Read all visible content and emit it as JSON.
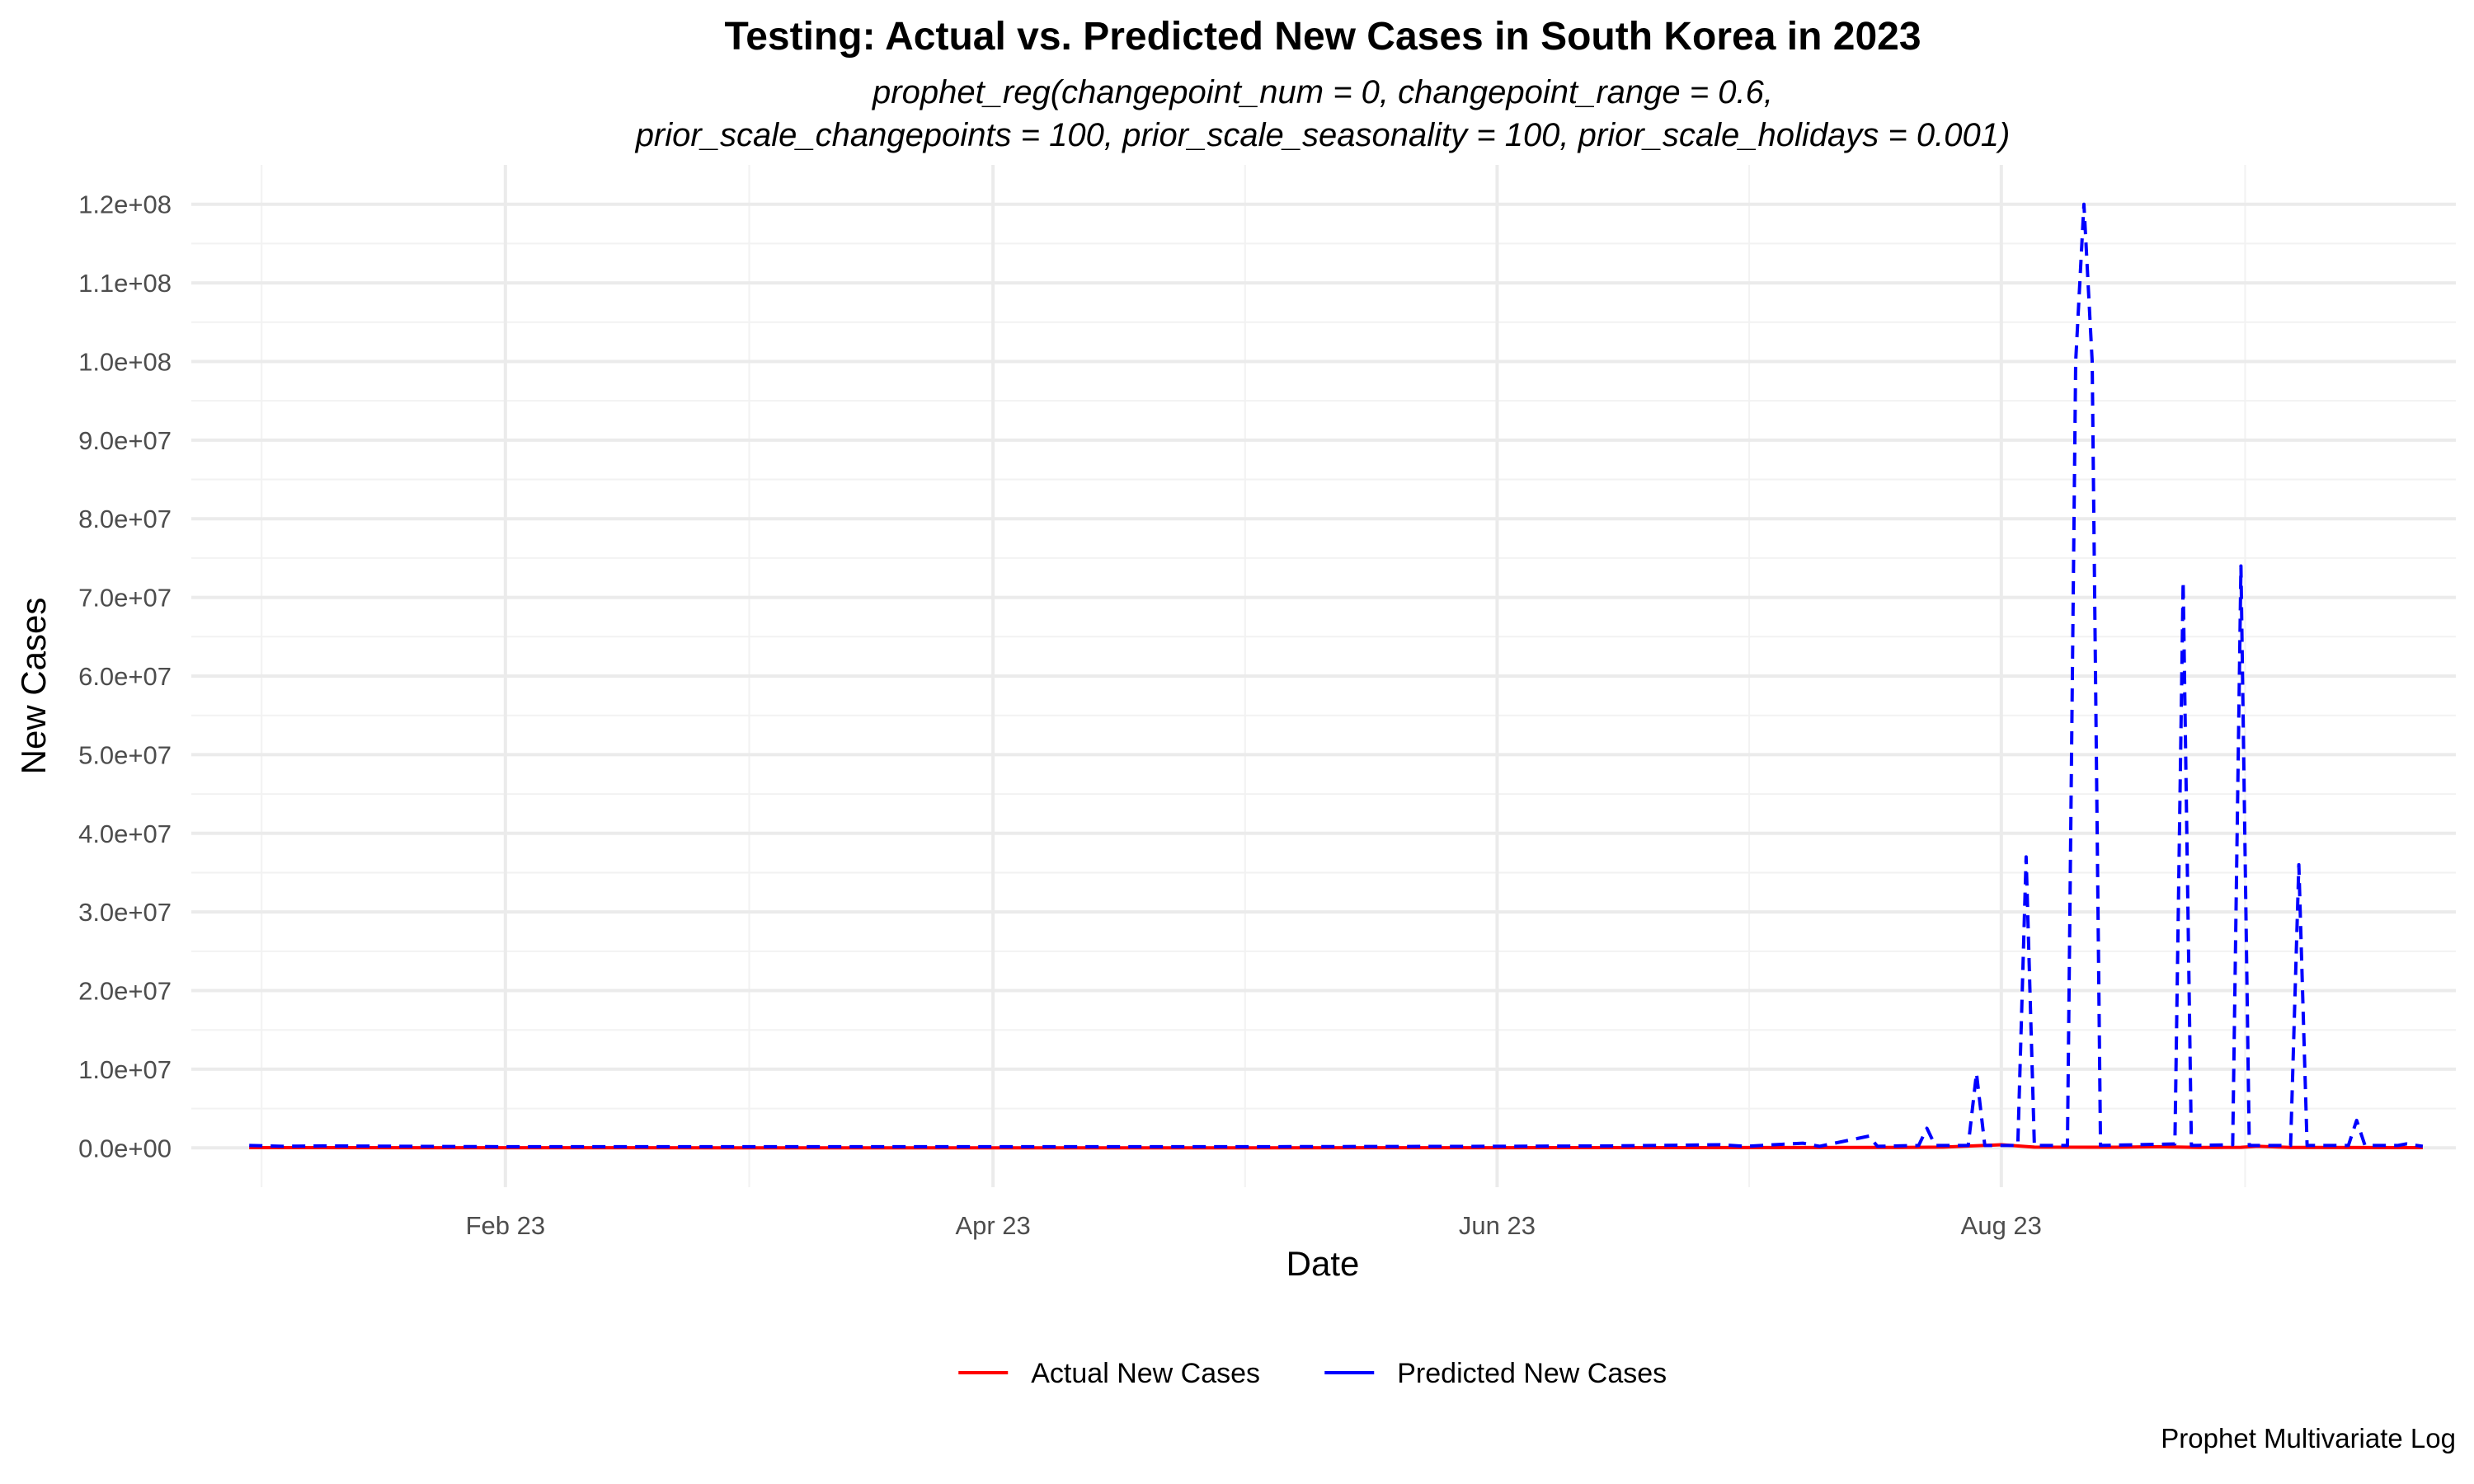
{
  "chart_data": {
    "type": "line",
    "title": "Testing: Actual vs. Predicted New Cases in South Korea in 2023",
    "subtitle_lines": [
      "prophet_reg(changepoint_num = 0, changepoint_range = 0.6,",
      "prior_scale_changepoints = 100, prior_scale_seasonality = 100, prior_scale_holidays = 0.001)"
    ],
    "xlabel": "Date",
    "ylabel": "New Cases",
    "caption": "Prophet Multivariate Log",
    "x_domain": [
      "2022-12-25",
      "2023-09-25"
    ],
    "x_ticks": [
      {
        "date": "2023-02-01",
        "label": "Feb 23"
      },
      {
        "date": "2023-04-01",
        "label": "Apr 23"
      },
      {
        "date": "2023-06-01",
        "label": "Jun 23"
      },
      {
        "date": "2023-08-01",
        "label": "Aug 23"
      }
    ],
    "ylim": [
      -5000000,
      125000000
    ],
    "y_ticks": [
      {
        "value": 0,
        "label": "0.0e+00"
      },
      {
        "value": 10000000,
        "label": "1.0e+07"
      },
      {
        "value": 20000000,
        "label": "2.0e+07"
      },
      {
        "value": 30000000,
        "label": "3.0e+07"
      },
      {
        "value": 40000000,
        "label": "4.0e+07"
      },
      {
        "value": 50000000,
        "label": "5.0e+07"
      },
      {
        "value": 60000000,
        "label": "6.0e+07"
      },
      {
        "value": 70000000,
        "label": "7.0e+07"
      },
      {
        "value": 80000000,
        "label": "8.0e+07"
      },
      {
        "value": 90000000,
        "label": "9.0e+07"
      },
      {
        "value": 100000000,
        "label": "1.0e+08"
      },
      {
        "value": 110000000,
        "label": "1.1e+08"
      },
      {
        "value": 120000000,
        "label": "1.2e+08"
      }
    ],
    "grid": true,
    "legend_position": "bottom",
    "series": [
      {
        "name": "Actual New Cases",
        "color": "#ff0000",
        "line_style": "solid",
        "points": [
          {
            "x": "2023-01-01",
            "y": 30000
          },
          {
            "x": "2023-02-01",
            "y": 20000
          },
          {
            "x": "2023-03-01",
            "y": 12000
          },
          {
            "x": "2023-04-01",
            "y": 10000
          },
          {
            "x": "2023-05-01",
            "y": 15000
          },
          {
            "x": "2023-06-01",
            "y": 20000
          },
          {
            "x": "2023-07-01",
            "y": 40000
          },
          {
            "x": "2023-07-20",
            "y": 60000
          },
          {
            "x": "2023-07-25",
            "y": 100000
          },
          {
            "x": "2023-08-01",
            "y": 400000
          },
          {
            "x": "2023-08-05",
            "y": 100000
          },
          {
            "x": "2023-08-15",
            "y": 80000
          },
          {
            "x": "2023-08-20",
            "y": 150000
          },
          {
            "x": "2023-08-25",
            "y": 60000
          },
          {
            "x": "2023-08-30",
            "y": 70000
          },
          {
            "x": "2023-09-01",
            "y": 200000
          },
          {
            "x": "2023-09-05",
            "y": 60000
          },
          {
            "x": "2023-09-15",
            "y": 40000
          },
          {
            "x": "2023-09-21",
            "y": 30000
          }
        ]
      },
      {
        "name": "Predicted New Cases",
        "color": "#0000ff",
        "line_style": "dashed",
        "points": [
          {
            "x": "2023-01-01",
            "y": 300000
          },
          {
            "x": "2023-01-05",
            "y": 200000
          },
          {
            "x": "2023-01-10",
            "y": 250000
          },
          {
            "x": "2023-01-20",
            "y": 200000
          },
          {
            "x": "2023-02-01",
            "y": 150000
          },
          {
            "x": "2023-03-01",
            "y": 150000
          },
          {
            "x": "2023-04-01",
            "y": 150000
          },
          {
            "x": "2023-05-01",
            "y": 150000
          },
          {
            "x": "2023-06-01",
            "y": 200000
          },
          {
            "x": "2023-06-15",
            "y": 250000
          },
          {
            "x": "2023-06-28",
            "y": 400000
          },
          {
            "x": "2023-07-01",
            "y": 200000
          },
          {
            "x": "2023-07-08",
            "y": 600000
          },
          {
            "x": "2023-07-10",
            "y": 200000
          },
          {
            "x": "2023-07-16",
            "y": 1500000
          },
          {
            "x": "2023-07-17",
            "y": 200000
          },
          {
            "x": "2023-07-22",
            "y": 300000
          },
          {
            "x": "2023-07-23",
            "y": 2500000
          },
          {
            "x": "2023-07-24",
            "y": 300000
          },
          {
            "x": "2023-07-28",
            "y": 300000
          },
          {
            "x": "2023-07-29",
            "y": 9500000
          },
          {
            "x": "2023-07-30",
            "y": 300000
          },
          {
            "x": "2023-08-03",
            "y": 300000
          },
          {
            "x": "2023-08-04",
            "y": 37000000
          },
          {
            "x": "2023-08-05",
            "y": 300000
          },
          {
            "x": "2023-08-09",
            "y": 300000
          },
          {
            "x": "2023-08-10",
            "y": 100000000
          },
          {
            "x": "2023-08-11",
            "y": 120000000
          },
          {
            "x": "2023-08-12",
            "y": 100000000
          },
          {
            "x": "2023-08-13",
            "y": 300000
          },
          {
            "x": "2023-08-22",
            "y": 500000
          },
          {
            "x": "2023-08-23",
            "y": 72000000
          },
          {
            "x": "2023-08-24",
            "y": 300000
          },
          {
            "x": "2023-08-29",
            "y": 400000
          },
          {
            "x": "2023-08-30",
            "y": 74000000
          },
          {
            "x": "2023-08-31",
            "y": 300000
          },
          {
            "x": "2023-09-05",
            "y": 300000
          },
          {
            "x": "2023-09-06",
            "y": 36000000
          },
          {
            "x": "2023-09-07",
            "y": 300000
          },
          {
            "x": "2023-09-12",
            "y": 300000
          },
          {
            "x": "2023-09-13",
            "y": 3500000
          },
          {
            "x": "2023-09-14",
            "y": 300000
          },
          {
            "x": "2023-09-18",
            "y": 300000
          },
          {
            "x": "2023-09-19",
            "y": 500000
          },
          {
            "x": "2023-09-21",
            "y": 200000
          }
        ]
      }
    ]
  }
}
